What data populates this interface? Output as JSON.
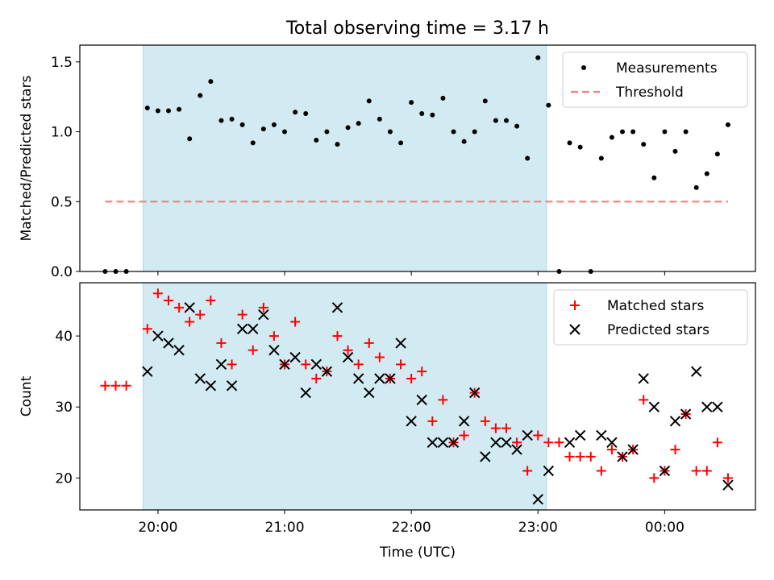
{
  "chart_data": {
    "title": "Total observing time = 3.17 h",
    "highlight_x_range": [
      "19:53",
      "23:04"
    ],
    "panels": [
      {
        "type": "scatter",
        "ylabel": "Matched/Predicted stars",
        "xlabel": "",
        "ylim": [
          0,
          1.62
        ],
        "yticks": [
          0.0,
          0.5,
          1.0,
          1.5
        ],
        "ytick_labels": [
          "0.0",
          "0.5",
          "1.0",
          "1.5"
        ],
        "legend_position": "upper right",
        "series": [
          {
            "name": "Measurements",
            "marker": "dot",
            "color": "#000000",
            "points": [
              [
                "19:35",
                0.0
              ],
              [
                "19:40",
                0.0
              ],
              [
                "19:45",
                0.0
              ],
              [
                "19:55",
                1.17
              ],
              [
                "20:00",
                1.15
              ],
              [
                "20:05",
                1.15
              ],
              [
                "20:10",
                1.16
              ],
              [
                "20:15",
                0.95
              ],
              [
                "20:20",
                1.26
              ],
              [
                "20:25",
                1.36
              ],
              [
                "20:30",
                1.08
              ],
              [
                "20:35",
                1.09
              ],
              [
                "20:40",
                1.05
              ],
              [
                "20:45",
                0.92
              ],
              [
                "20:50",
                1.02
              ],
              [
                "20:55",
                1.05
              ],
              [
                "21:00",
                1.0
              ],
              [
                "21:05",
                1.14
              ],
              [
                "21:10",
                1.13
              ],
              [
                "21:15",
                0.94
              ],
              [
                "21:20",
                1.0
              ],
              [
                "21:25",
                0.91
              ],
              [
                "21:30",
                1.03
              ],
              [
                "21:35",
                1.06
              ],
              [
                "21:40",
                1.22
              ],
              [
                "21:45",
                1.09
              ],
              [
                "21:50",
                1.0
              ],
              [
                "21:55",
                0.92
              ],
              [
                "22:00",
                1.21
              ],
              [
                "22:05",
                1.13
              ],
              [
                "22:10",
                1.12
              ],
              [
                "22:15",
                1.24
              ],
              [
                "22:20",
                1.0
              ],
              [
                "22:25",
                0.93
              ],
              [
                "22:30",
                1.0
              ],
              [
                "22:35",
                1.22
              ],
              [
                "22:40",
                1.08
              ],
              [
                "22:45",
                1.08
              ],
              [
                "22:50",
                1.04
              ],
              [
                "22:55",
                0.81
              ],
              [
                "23:00",
                1.53
              ],
              [
                "23:05",
                1.19
              ],
              [
                "23:10",
                0.0
              ],
              [
                "23:15",
                0.92
              ],
              [
                "23:20",
                0.89
              ],
              [
                "23:25",
                0.0
              ],
              [
                "23:30",
                0.81
              ],
              [
                "23:35",
                0.96
              ],
              [
                "23:40",
                1.0
              ],
              [
                "23:45",
                1.0
              ],
              [
                "23:50",
                0.91
              ],
              [
                "23:55",
                0.67
              ],
              [
                "00:00",
                1.0
              ],
              [
                "00:05",
                0.86
              ],
              [
                "00:10",
                1.0
              ],
              [
                "00:15",
                0.6
              ],
              [
                "00:20",
                0.7
              ],
              [
                "00:25",
                0.84
              ],
              [
                "00:30",
                1.05
              ]
            ]
          },
          {
            "name": "Threshold",
            "type": "line",
            "style": "dashed",
            "color": "#f08080",
            "x_range": [
              "19:35",
              "00:30"
            ],
            "y": 0.5
          }
        ]
      },
      {
        "type": "scatter",
        "ylabel": "Count",
        "xlabel": "Time (UTC)",
        "ylim": [
          15.5,
          47.5
        ],
        "yticks": [
          20,
          30,
          40
        ],
        "ytick_labels": [
          "20",
          "30",
          "40"
        ],
        "legend_position": "upper right",
        "series": [
          {
            "name": "Matched stars",
            "marker": "plus",
            "color": "#ff0000",
            "points": [
              [
                "19:35",
                33
              ],
              [
                "19:40",
                33
              ],
              [
                "19:45",
                33
              ],
              [
                "19:55",
                41
              ],
              [
                "20:00",
                46
              ],
              [
                "20:05",
                45
              ],
              [
                "20:10",
                44
              ],
              [
                "20:15",
                42
              ],
              [
                "20:20",
                43
              ],
              [
                "20:25",
                45
              ],
              [
                "20:30",
                39
              ],
              [
                "20:35",
                36
              ],
              [
                "20:40",
                43
              ],
              [
                "20:45",
                38
              ],
              [
                "20:50",
                44
              ],
              [
                "20:55",
                40
              ],
              [
                "21:00",
                36
              ],
              [
                "21:05",
                42
              ],
              [
                "21:10",
                36
              ],
              [
                "21:15",
                34
              ],
              [
                "21:20",
                35
              ],
              [
                "21:25",
                40
              ],
              [
                "21:30",
                38
              ],
              [
                "21:35",
                36
              ],
              [
                "21:40",
                39
              ],
              [
                "21:45",
                37
              ],
              [
                "21:50",
                34
              ],
              [
                "21:55",
                36
              ],
              [
                "22:00",
                34
              ],
              [
                "22:05",
                35
              ],
              [
                "22:10",
                28
              ],
              [
                "22:15",
                31
              ],
              [
                "22:20",
                25
              ],
              [
                "22:25",
                26
              ],
              [
                "22:30",
                32
              ],
              [
                "22:35",
                28
              ],
              [
                "22:40",
                27
              ],
              [
                "22:45",
                27
              ],
              [
                "22:50",
                25
              ],
              [
                "22:55",
                21
              ],
              [
                "23:00",
                26
              ],
              [
                "23:05",
                25
              ],
              [
                "23:10",
                25
              ],
              [
                "23:15",
                23
              ],
              [
                "23:20",
                23
              ],
              [
                "23:25",
                23
              ],
              [
                "23:30",
                21
              ],
              [
                "23:35",
                24
              ],
              [
                "23:40",
                23
              ],
              [
                "23:45",
                24
              ],
              [
                "23:50",
                31
              ],
              [
                "23:55",
                20
              ],
              [
                "00:00",
                21
              ],
              [
                "00:05",
                24
              ],
              [
                "00:10",
                29
              ],
              [
                "00:15",
                21
              ],
              [
                "00:20",
                21
              ],
              [
                "00:25",
                25
              ],
              [
                "00:30",
                20
              ]
            ]
          },
          {
            "name": "Predicted stars",
            "marker": "x",
            "color": "#000000",
            "points": [
              [
                "19:55",
                35
              ],
              [
                "20:00",
                40
              ],
              [
                "20:05",
                39
              ],
              [
                "20:10",
                38
              ],
              [
                "20:15",
                44
              ],
              [
                "20:20",
                34
              ],
              [
                "20:25",
                33
              ],
              [
                "20:30",
                36
              ],
              [
                "20:35",
                33
              ],
              [
                "20:40",
                41
              ],
              [
                "20:45",
                41
              ],
              [
                "20:50",
                43
              ],
              [
                "20:55",
                38
              ],
              [
                "21:00",
                36
              ],
              [
                "21:05",
                37
              ],
              [
                "21:10",
                32
              ],
              [
                "21:15",
                36
              ],
              [
                "21:20",
                35
              ],
              [
                "21:25",
                44
              ],
              [
                "21:30",
                37
              ],
              [
                "21:35",
                34
              ],
              [
                "21:40",
                32
              ],
              [
                "21:45",
                34
              ],
              [
                "21:50",
                34
              ],
              [
                "21:55",
                39
              ],
              [
                "22:00",
                28
              ],
              [
                "22:05",
                31
              ],
              [
                "22:10",
                25
              ],
              [
                "22:15",
                25
              ],
              [
                "22:20",
                25
              ],
              [
                "22:25",
                28
              ],
              [
                "22:30",
                32
              ],
              [
                "22:35",
                23
              ],
              [
                "22:40",
                25
              ],
              [
                "22:45",
                25
              ],
              [
                "22:50",
                24
              ],
              [
                "22:55",
                26
              ],
              [
                "23:00",
                17
              ],
              [
                "23:05",
                21
              ],
              [
                "23:15",
                25
              ],
              [
                "23:20",
                26
              ],
              [
                "23:30",
                26
              ],
              [
                "23:35",
                25
              ],
              [
                "23:40",
                23
              ],
              [
                "23:45",
                24
              ],
              [
                "23:50",
                34
              ],
              [
                "23:55",
                30
              ],
              [
                "00:00",
                21
              ],
              [
                "00:05",
                28
              ],
              [
                "00:10",
                29
              ],
              [
                "00:15",
                35
              ],
              [
                "00:20",
                30
              ],
              [
                "00:25",
                30
              ],
              [
                "00:30",
                19
              ]
            ]
          }
        ]
      }
    ],
    "x_axis": {
      "type": "time",
      "range": [
        "19:23",
        "00:43"
      ],
      "ticks": [
        "20:00",
        "21:00",
        "22:00",
        "23:00",
        "00:00"
      ],
      "tick_labels": [
        "20:00",
        "21:00",
        "22:00",
        "23:00",
        "00:00"
      ]
    },
    "colors": {
      "highlight": "#add8e6",
      "threshold": "#f08080",
      "matched": "#ff0000",
      "predicted": "#000000",
      "measurements": "#000000"
    }
  }
}
